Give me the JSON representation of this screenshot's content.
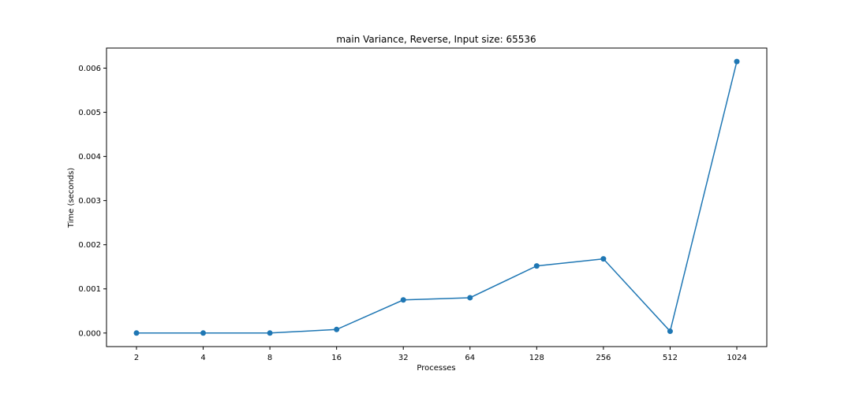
{
  "chart_data": {
    "type": "line",
    "title": "main Variance, Reverse, Input size: 65536",
    "xlabel": "Processes",
    "ylabel": "Time (seconds)",
    "categories": [
      "2",
      "4",
      "8",
      "16",
      "32",
      "64",
      "128",
      "256",
      "512",
      "1024"
    ],
    "series": [
      {
        "values": [
          0.0,
          0.0,
          0.0,
          8e-05,
          0.00075,
          0.0008,
          0.00152,
          0.00168,
          4e-05,
          0.00615
        ],
        "color": "#1f77b4",
        "marker": "circle"
      }
    ],
    "yticks": [
      {
        "value": 0.0,
        "label": "0.000"
      },
      {
        "value": 0.001,
        "label": "0.001"
      },
      {
        "value": 0.002,
        "label": "0.002"
      },
      {
        "value": 0.003,
        "label": "0.003"
      },
      {
        "value": 0.004,
        "label": "0.004"
      },
      {
        "value": 0.005,
        "label": "0.005"
      },
      {
        "value": 0.006,
        "label": "0.006"
      }
    ],
    "ylim": [
      -0.000307,
      0.006455
    ],
    "grid": false,
    "legend": "none"
  }
}
